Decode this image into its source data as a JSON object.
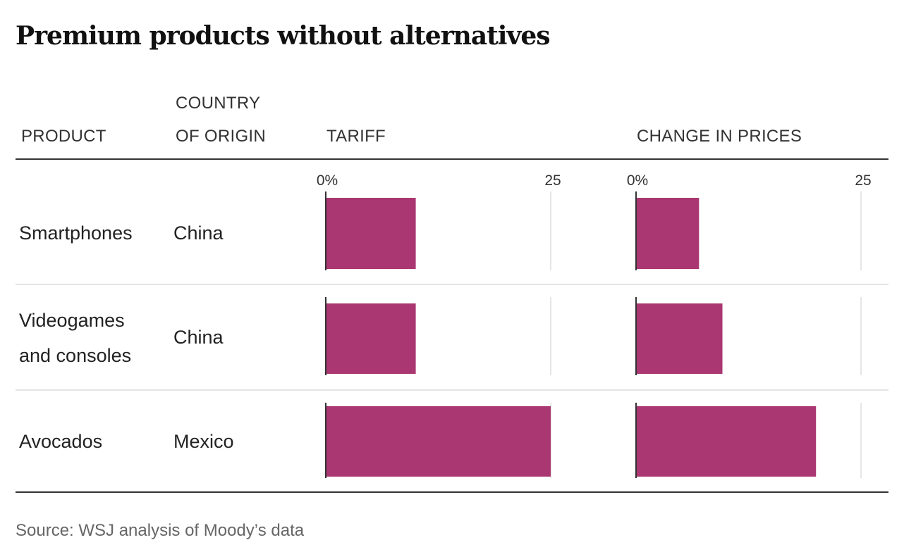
{
  "title": "Premium products without alternatives",
  "headers": {
    "product": "PRODUCT",
    "origin_line1": "COUNTRY",
    "origin_line2": "OF ORIGIN",
    "tariff": "TARIFF",
    "change": "CHANGE IN PRICES"
  },
  "rows": [
    {
      "product_line1": "Smartphones",
      "product_line2": "",
      "origin": "China"
    },
    {
      "product_line1": "Videogames",
      "product_line2": "and consoles",
      "origin": "China"
    },
    {
      "product_line1": "Avocados",
      "product_line2": "",
      "origin": "Mexico"
    }
  ],
  "source": "Source: WSJ analysis of Moody’s data",
  "colors": {
    "bar": "#AA3771",
    "axis": "#333333",
    "grid": "#dddddd"
  },
  "chart_data": [
    {
      "type": "bar",
      "orientation": "horizontal",
      "title": "TARIFF",
      "categories": [
        "Smartphones",
        "Videogames and consoles",
        "Avocados"
      ],
      "values": [
        10,
        10,
        25
      ],
      "xlim": [
        0,
        25
      ],
      "tick_labels": [
        "0%",
        "25"
      ]
    },
    {
      "type": "bar",
      "orientation": "horizontal",
      "title": "CHANGE IN PRICES",
      "categories": [
        "Smartphones",
        "Videogames and consoles",
        "Avocados"
      ],
      "values": [
        7,
        9.6,
        20
      ],
      "xlim": [
        0,
        25
      ],
      "tick_labels": [
        "0%",
        "25"
      ]
    }
  ]
}
